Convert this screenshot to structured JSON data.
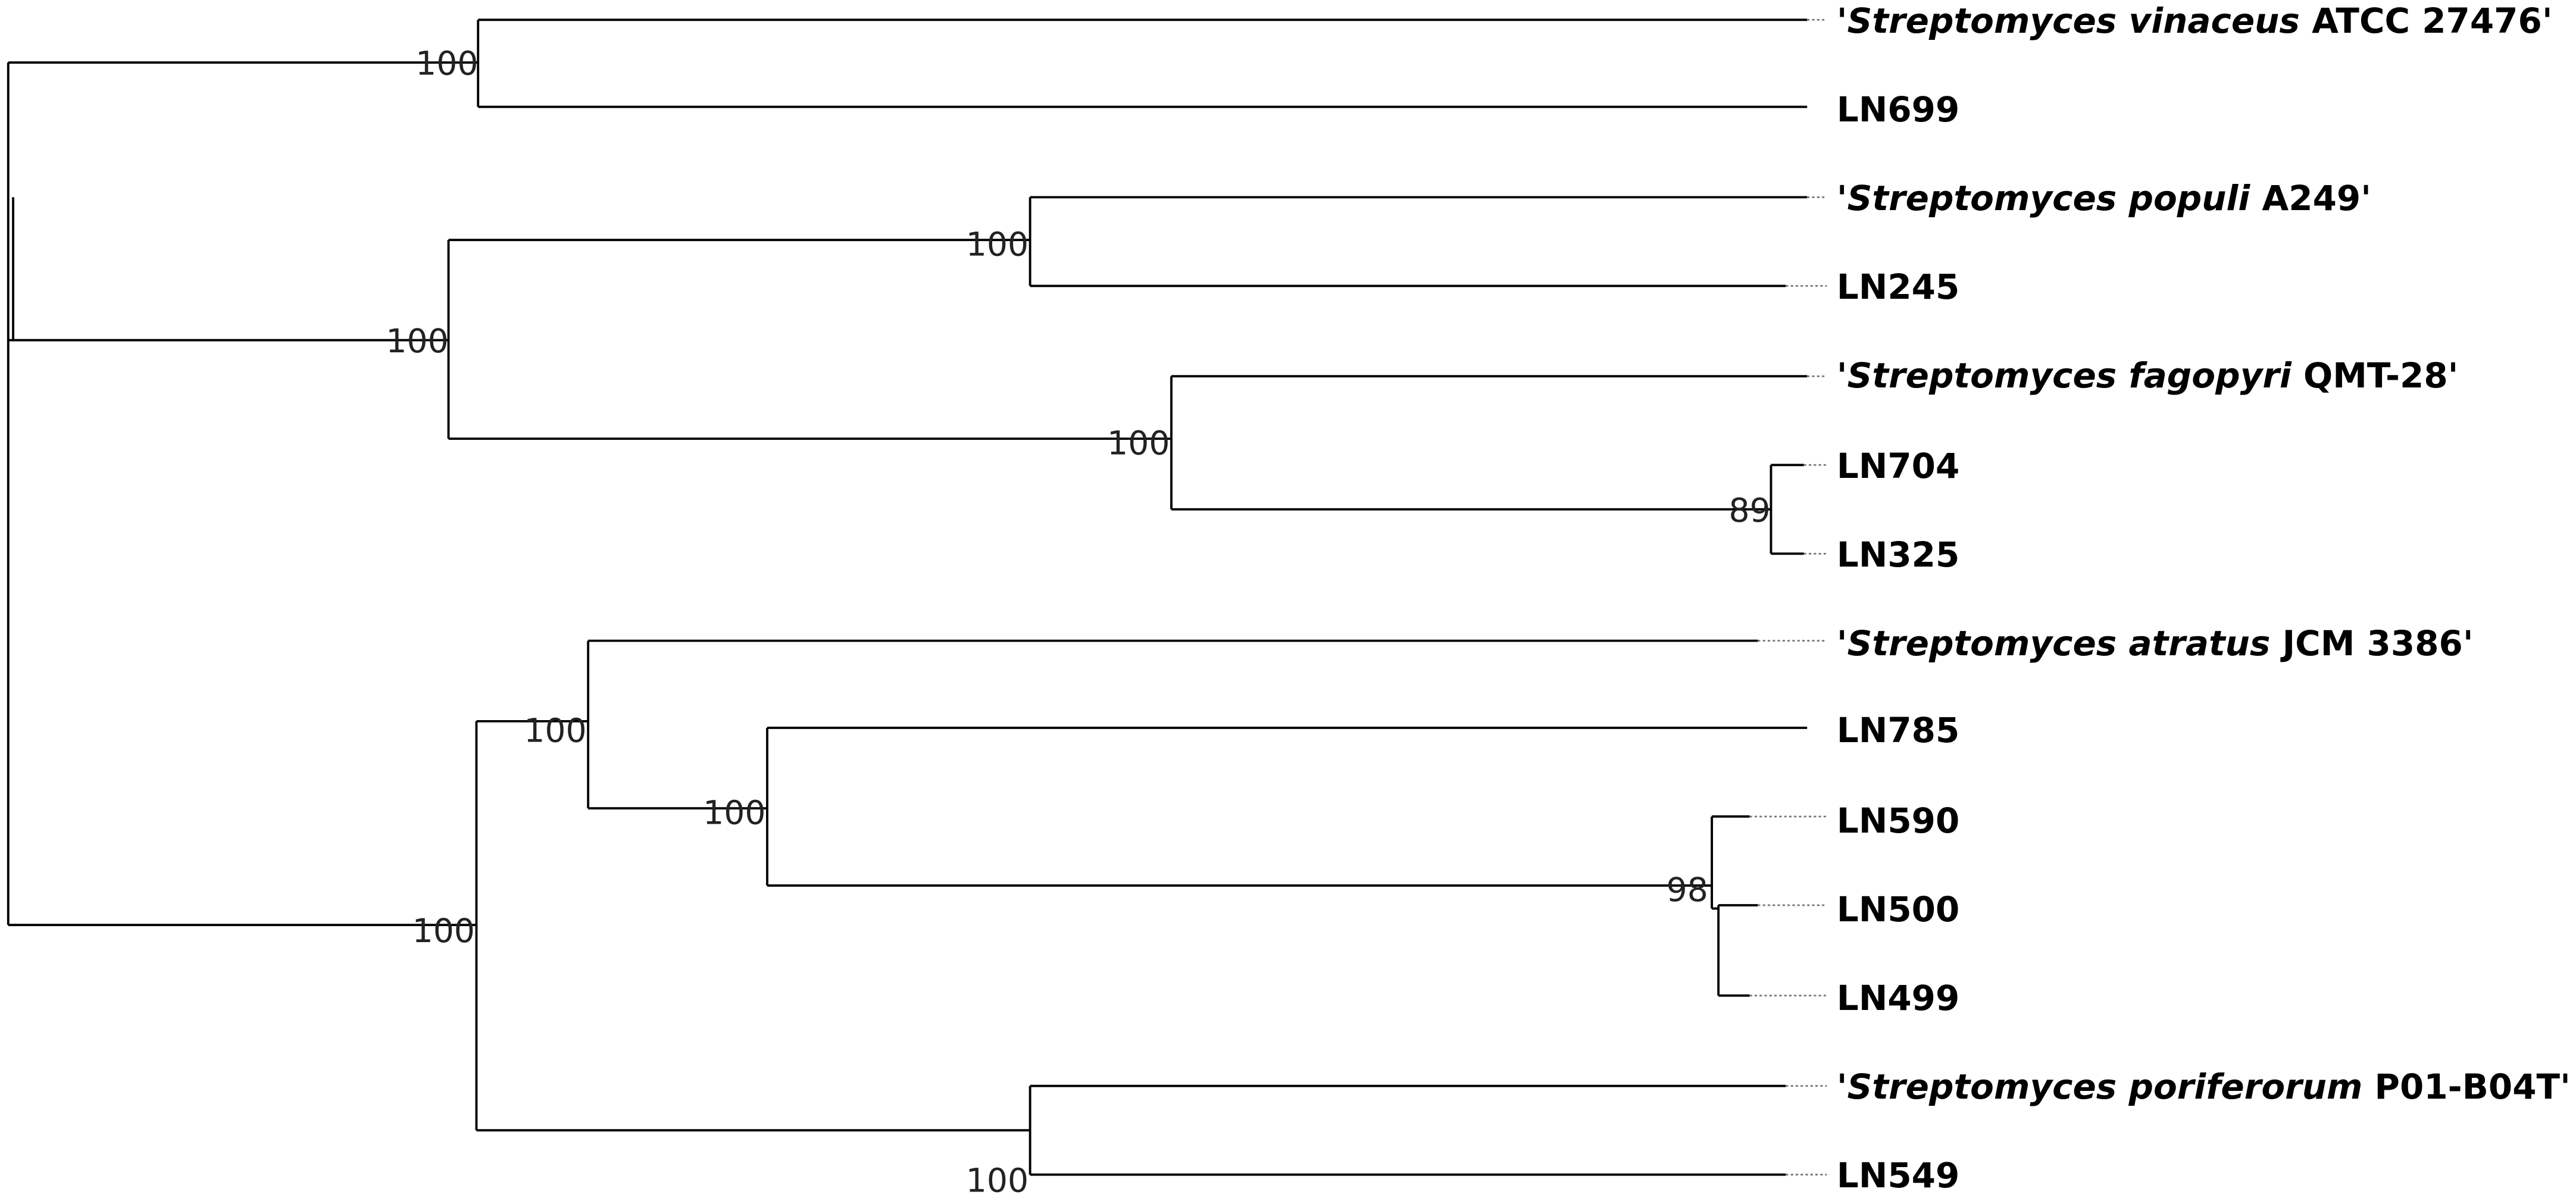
{
  "leaves": [
    {
      "prefix": "'",
      "italic": "Streptomyces vinaceus",
      "suffix": " ATCC 27476'"
    },
    {
      "text": "LN699"
    },
    {
      "prefix": "'",
      "italic": "Streptomyces populi",
      "suffix": " A249'"
    },
    {
      "text": "LN245"
    },
    {
      "prefix": "'",
      "italic": "Streptomyces fagopyri",
      "suffix": " QMT-28'"
    },
    {
      "text": "LN704"
    },
    {
      "text": "LN325"
    },
    {
      "prefix": "'",
      "italic": "Streptomyces atratus",
      "suffix": " JCM 3386'"
    },
    {
      "text": "LN785"
    },
    {
      "text": "LN590"
    },
    {
      "text": "LN500"
    },
    {
      "text": "LN499"
    },
    {
      "prefix": "'",
      "italic": "Streptomyces poriferorum",
      "suffix": " P01-B04T'"
    },
    {
      "text": "LN549"
    }
  ],
  "bootstrap": [
    100,
    100,
    100,
    100,
    89,
    100,
    100,
    100,
    98,
    100
  ]
}
